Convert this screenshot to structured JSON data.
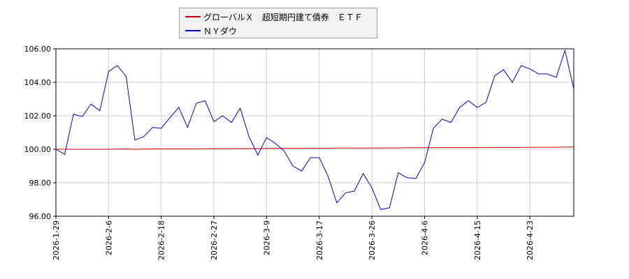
{
  "chart_data": {
    "type": "line",
    "title": "",
    "xlabel": "",
    "ylabel": "",
    "ylim": [
      96.0,
      106.0
    ],
    "yticks": [
      "96.00",
      "98.00",
      "100.00",
      "102.00",
      "104.00",
      "106.00"
    ],
    "xtick_labels": [
      "2026-1-29",
      "2026-2-6",
      "2026-2-18",
      "2026-2-27",
      "2026-3-9",
      "2026-3-17",
      "2026-3-26",
      "2026-4-6",
      "2026-4-15",
      "2026-4-23"
    ],
    "grid": true,
    "legend_position": "top",
    "series": [
      {
        "name": "グローバルＸ　超短期円建て債券　ＥＴＦ",
        "color": "#cc0000",
        "values": [
          100.0,
          100.0,
          100.0,
          100.0,
          100.0,
          100.0,
          100.0,
          100.01,
          100.02,
          100.0,
          100.01,
          100.02,
          100.02,
          100.02,
          100.02,
          100.02,
          100.02,
          100.03,
          100.03,
          100.03,
          100.03,
          100.04,
          100.04,
          100.04,
          100.05,
          100.05,
          100.05,
          100.05,
          100.06,
          100.06,
          100.06,
          100.06,
          100.07,
          100.07,
          100.07,
          100.07,
          100.08,
          100.08,
          100.08,
          100.08,
          100.09,
          100.09,
          100.09,
          100.09,
          100.1,
          100.1,
          100.1,
          100.1,
          100.1,
          100.11,
          100.11,
          100.11,
          100.11,
          100.11,
          100.12,
          100.12,
          100.12,
          100.12,
          100.13,
          100.14
        ]
      },
      {
        "name": "ＮＹダウ",
        "color": "#0000cc",
        "values": [
          100.0,
          99.7,
          102.1,
          101.95,
          102.7,
          102.3,
          104.65,
          105.0,
          104.35,
          100.55,
          100.75,
          101.3,
          101.25,
          101.9,
          102.5,
          101.3,
          102.75,
          102.9,
          101.65,
          102.0,
          101.6,
          102.45,
          100.75,
          99.65,
          100.7,
          100.35,
          99.9,
          99.0,
          98.7,
          99.5,
          99.5,
          98.4,
          96.8,
          97.4,
          97.5,
          98.55,
          97.7,
          96.4,
          96.5,
          98.6,
          98.3,
          98.25,
          99.2,
          101.25,
          101.8,
          101.6,
          102.5,
          102.9,
          102.5,
          102.8,
          104.4,
          104.75,
          104.0,
          105.0,
          104.8,
          104.5,
          104.5,
          104.3,
          105.9,
          103.6
        ]
      }
    ]
  }
}
